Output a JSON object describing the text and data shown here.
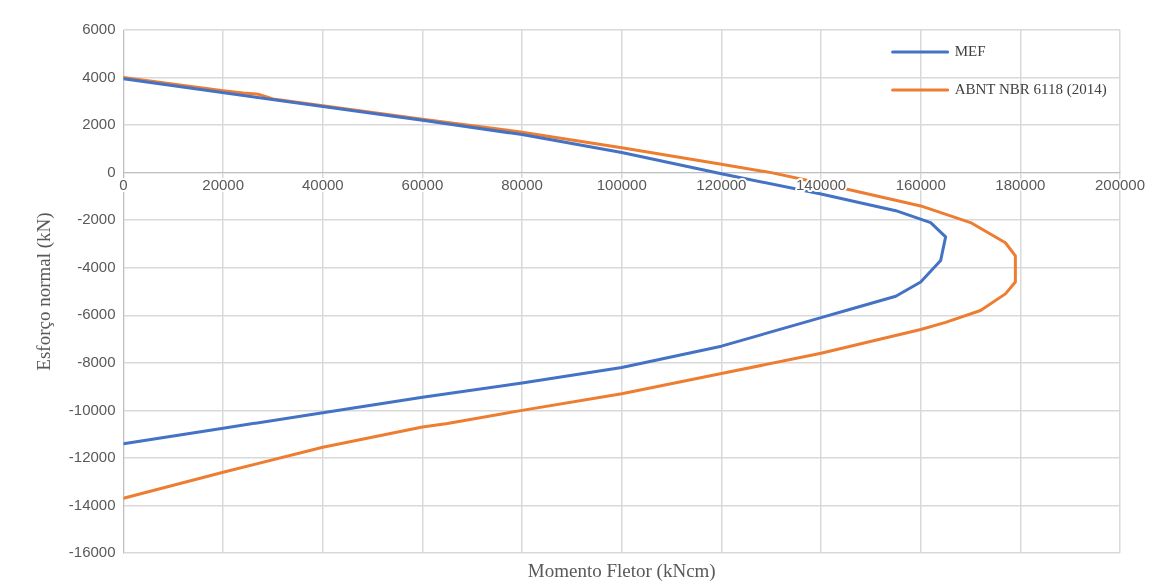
{
  "chart_data": {
    "type": "line",
    "xlabel": "Momento Fletor (kNcm)",
    "ylabel": "Esforço normal (kN)",
    "xlim": [
      0,
      200000
    ],
    "xticks": [
      0,
      20000,
      40000,
      60000,
      80000,
      100000,
      120000,
      140000,
      160000,
      180000,
      200000
    ],
    "ylim": [
      -16000,
      6000
    ],
    "yticks": [
      -16000,
      -14000,
      -12000,
      -10000,
      -8000,
      -6000,
      -4000,
      -2000,
      0,
      2000,
      4000,
      6000
    ],
    "grid": true,
    "legend": "top right",
    "marker": "none",
    "line_style": "solid",
    "series": [
      {
        "name": "MEF",
        "color": "#4472c4",
        "x": [
          0,
          60000,
          80000,
          100000,
          120000,
          140000,
          155000,
          162000,
          165000,
          164000,
          160000,
          155000,
          145000,
          140000,
          120000,
          100000,
          80000,
          60000,
          40000,
          20000,
          0
        ],
        "values": [
          3950,
          2200,
          1600,
          850,
          -50,
          -900,
          -1600,
          -2100,
          -2700,
          -3700,
          -4600,
          -5200,
          -5800,
          -6100,
          -7300,
          -8200,
          -8850,
          -9450,
          -10100,
          -10750,
          -11400
        ]
      },
      {
        "name": "ABNT NBR 6118 (2014)",
        "color": "#ed7d31",
        "x": [
          0,
          20000,
          24000,
          27000,
          30000,
          60000,
          80000,
          100000,
          120000,
          130000,
          140000,
          160000,
          170000,
          177000,
          179000,
          179000,
          177000,
          172000,
          165000,
          160000,
          140000,
          120000,
          100000,
          80000,
          65000,
          60000,
          40000,
          20000,
          0
        ],
        "values": [
          4000,
          3450,
          3350,
          3300,
          3100,
          2250,
          1700,
          1050,
          350,
          0,
          -450,
          -1400,
          -2100,
          -2950,
          -3500,
          -4600,
          -5100,
          -5800,
          -6300,
          -6600,
          -7600,
          -8450,
          -9300,
          -10000,
          -10550,
          -10700,
          -11550,
          -12600,
          -13700
        ]
      }
    ]
  }
}
